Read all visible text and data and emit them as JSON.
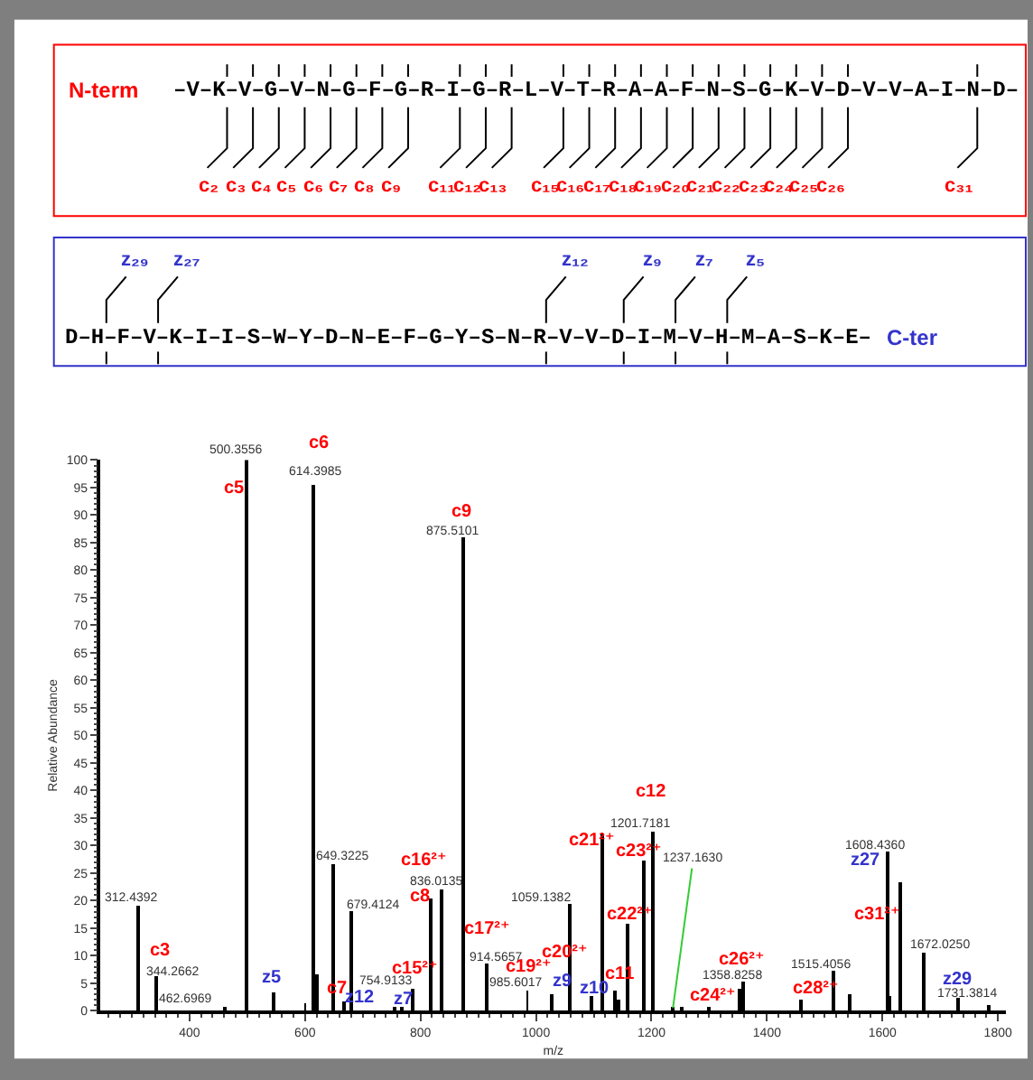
{
  "chart_data": {
    "type": "bar",
    "xlabel": "m/z",
    "ylabel": "Relative Abundance",
    "color": "#000000",
    "xlim": [
      246,
      1814
    ],
    "xticks": [
      400,
      600,
      800,
      1000,
      1200,
      1400,
      1600,
      1800
    ],
    "ylim": [
      0,
      100
    ],
    "yticks": [
      0,
      5,
      10,
      15,
      20,
      25,
      30,
      35,
      40,
      45,
      50,
      55,
      60,
      65,
      70,
      75,
      80,
      85,
      90,
      95,
      100
    ],
    "x": [
      312.4392,
      344.2662,
      462.6969,
      500.3556,
      547,
      601,
      614.3985,
      620,
      649.3225,
      669,
      679.4124,
      754.9133,
      768,
      788,
      819,
      836.0135,
      875.5101,
      914.5657,
      985.6017,
      1029,
      1059.1382,
      1098,
      1116,
      1137,
      1143,
      1159,
      1186,
      1201.7181,
      1237.163,
      1253,
      1301,
      1352,
      1358.8258,
      1459,
      1515.4056,
      1545,
      1608.436,
      1612,
      1631,
      1672.025,
      1731.3814,
      1785
    ],
    "values": [
      19.1,
      6.3,
      0.6,
      100,
      3.2,
      1.3,
      95.3,
      6.6,
      26.7,
      1.6,
      18.1,
      0.5,
      0.6,
      3.9,
      20.2,
      22.1,
      86,
      8.6,
      3.7,
      3.0,
      19.4,
      2.7,
      32.2,
      3.5,
      1.9,
      15.7,
      27.3,
      32.6,
      0.5,
      0.6,
      0.8,
      4.0,
      5.4,
      1.9,
      7.2,
      3.0,
      28.8,
      2.5,
      23.4,
      10.4,
      2.2,
      1.1
    ],
    "annotations": [
      "N-term",
      "–V–K–V–G–V–N–G–F–G–R–I–G–R–L–V–T–R–A–A–F–N–S–G–K–V–D–V–V–A–I–N–D–",
      "c₂",
      "c₃",
      "c₄",
      "c₅",
      "c₆",
      "c₇",
      "c₈",
      "c₉",
      "c₁₁",
      "c₁₂",
      "c₁₃",
      "c₁₅",
      "c₁₆",
      "c₁₇",
      "c₁₈",
      "c₁₉",
      "c₂₀",
      "c₂₁",
      "c₂₂",
      "c₂₃",
      "c₂₄",
      "c₂₅",
      "c₂₆",
      "c₃₁",
      "D–H–F–V–K–I–I–S–W–Y–D–N–E–F–G–Y–S–N–R–V–V–D–I–M–V–H–M–A–S–K–E–",
      "C-ter",
      "z₂₉",
      "z₂₇",
      "z₁₂",
      "z₉",
      "z₇",
      "z₅",
      {
        "text": "312.4392",
        "x": 312.4392,
        "y": 19.1
      },
      {
        "text": "344.2662",
        "x": 344.2662,
        "y": 6.3
      },
      {
        "text": "462.6969",
        "x": 462.6969,
        "y": 0.6
      },
      {
        "text": "500.3556",
        "x": 500.3556,
        "y": 100
      },
      {
        "text": "614.3985",
        "x": 614.3985,
        "y": 95.3
      },
      {
        "text": "649.3225",
        "x": 649.3225,
        "y": 26.7
      },
      {
        "text": "679.4124",
        "x": 679.4124,
        "y": 18.1
      },
      {
        "text": "754.9133",
        "x": 754.9133,
        "y": 0.5
      },
      {
        "text": "836.0135",
        "x": 836.0135,
        "y": 22.1
      },
      {
        "text": "875.5101",
        "x": 875.5101,
        "y": 86
      },
      {
        "text": "914.5657",
        "x": 914.5657,
        "y": 8.6
      },
      {
        "text": "985.6017",
        "x": 985.6017,
        "y": 3.7
      },
      {
        "text": "1059.1382",
        "x": 1059.1382,
        "y": 19.4
      },
      {
        "text": "1201.7181",
        "x": 1201.7181,
        "y": 32.6
      },
      {
        "text": "1237.1630",
        "x": 1237.163,
        "y": 0.5
      },
      {
        "text": "1358.8258",
        "x": 1358.8258,
        "y": 5.4
      },
      {
        "text": "1515.4056",
        "x": 1515.4056,
        "y": 7.2
      },
      {
        "text": "1608.4360",
        "x": 1608.436,
        "y": 28.8
      },
      {
        "text": "1672.0250",
        "x": 1672.025,
        "y": 10.4
      },
      {
        "text": "1731.3814",
        "x": 1731.3814,
        "y": 2.2
      },
      {
        "text": "c5",
        "x": 500.3556,
        "y": 100
      },
      {
        "text": "c6",
        "x": 614.3985,
        "y": 95.3
      },
      {
        "text": "c9",
        "x": 875.5101,
        "y": 86
      },
      {
        "text": "c3",
        "x": 344.2662,
        "y": 6.3
      },
      {
        "text": "c7",
        "x": 669,
        "y": 1.6
      },
      {
        "text": "c15²⁺",
        "x": 788,
        "y": 3.9
      },
      {
        "text": "c16²⁺",
        "x": 836.0135,
        "y": 22.1
      },
      {
        "text": "c8",
        "x": 819,
        "y": 20.2
      },
      {
        "text": "c17²⁺",
        "x": 914.5657,
        "y": 8.6
      },
      {
        "text": "c19²⁺",
        "x": 985.6017,
        "y": 3.7
      },
      {
        "text": "c20²⁺",
        "x": 1059.1382,
        "y": 19.4
      },
      {
        "text": "c21²⁺",
        "x": 1116,
        "y": 32.2
      },
      {
        "text": "c23²⁺",
        "x": 1186,
        "y": 27.3
      },
      {
        "text": "c12",
        "x": 1201.7181,
        "y": 32.6
      },
      {
        "text": "c22²⁺",
        "x": 1159,
        "y": 15.7
      },
      {
        "text": "c11",
        "x": 1137,
        "y": 3.5
      },
      {
        "text": "c26²⁺",
        "x": 1358.8258,
        "y": 5.4
      },
      {
        "text": "c24²⁺",
        "x": 1301,
        "y": 0.8
      },
      {
        "text": "c28²⁺",
        "x": 1459,
        "y": 1.9
      },
      {
        "text": "c31²⁺",
        "x": 1631,
        "y": 23.4
      },
      {
        "text": "z5",
        "x": 547,
        "y": 3.2
      },
      {
        "text": "z12",
        "x": 669,
        "y": 1.6
      },
      {
        "text": "z7",
        "x": 768,
        "y": 0.6
      },
      {
        "text": "z9",
        "x": 1029,
        "y": 3.0
      },
      {
        "text": "z10",
        "x": 1098,
        "y": 2.7
      },
      {
        "text": "z27",
        "x": 1608.436,
        "y": 28.8
      },
      {
        "text": "z29",
        "x": 1731.3814,
        "y": 2.2
      }
    ]
  }
}
